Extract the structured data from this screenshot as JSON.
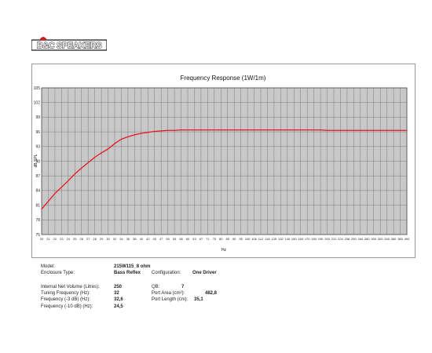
{
  "logo": {
    "text": "B&C SPEAKERS"
  },
  "chart_data": {
    "type": "line",
    "title": "Frequency Response (1W/1m)",
    "xlabel": "Hz",
    "ylabel": "dB SPL",
    "ylim": [
      75,
      105
    ],
    "yticks": [
      75,
      78,
      81,
      84,
      87,
      90,
      93,
      96,
      99,
      102,
      105
    ],
    "xticks": [
      20,
      21,
      22,
      23,
      24,
      25,
      26,
      27,
      28,
      29,
      30,
      32,
      34,
      36,
      38,
      40,
      42,
      45,
      47,
      50,
      53,
      56,
      60,
      63,
      67,
      71,
      75,
      80,
      85,
      90,
      95,
      100,
      106,
      112,
      118,
      125,
      132,
      140,
      150,
      160,
      170,
      180,
      190,
      200,
      212,
      224,
      236,
      250,
      264,
      280,
      300,
      320,
      340,
      360,
      380,
      400
    ],
    "grid": true,
    "line_color": "#e8141e",
    "series": [
      {
        "x": [
          20,
          21,
          22,
          23,
          24,
          25,
          26,
          27,
          28,
          29,
          30,
          32,
          34,
          36,
          38,
          40,
          42,
          45,
          47,
          50,
          53,
          56,
          60,
          63,
          67,
          71,
          75,
          80,
          85,
          90,
          95,
          100,
          106,
          112,
          118,
          125,
          132,
          140,
          150,
          160,
          170,
          180,
          190,
          200,
          212,
          224,
          236,
          250,
          264,
          280,
          300,
          320,
          340,
          360,
          380,
          400
        ],
        "values": [
          80.2,
          81.8,
          83.4,
          84.7,
          86.0,
          87.4,
          88.6,
          89.7,
          90.8,
          91.7,
          92.5,
          93.6,
          94.5,
          95.0,
          95.4,
          95.7,
          95.9,
          96.1,
          96.2,
          96.3,
          96.3,
          96.4,
          96.4,
          96.4,
          96.4,
          96.4,
          96.4,
          96.4,
          96.4,
          96.4,
          96.4,
          96.4,
          96.4,
          96.4,
          96.4,
          96.4,
          96.4,
          96.4,
          96.4,
          96.4,
          96.4,
          96.4,
          96.4,
          96.3,
          96.3,
          96.3,
          96.3,
          96.3,
          96.3,
          96.3,
          96.3,
          96.3,
          96.3,
          96.3,
          96.3,
          96.3
        ]
      }
    ]
  },
  "specs": {
    "model_label": "Model:",
    "model_value": "215W115_8 ohm",
    "enclosure_label": "Enclosure Type:",
    "enclosure_value": "Bass Reflex",
    "configuration_label": "Configuration:",
    "configuration_value": "One Driver",
    "volume_label": "Internal Net Volume (Litres):",
    "volume_value": "250",
    "qb_label": "QB:",
    "qb_value": "7",
    "tuning_label": "Tuning Frequency (Hz):",
    "tuning_value": "32",
    "port_area_label": "Port Area (cm²):",
    "port_area_value": "482,8",
    "f3_label": "Frequency (-3 dB) (Hz):",
    "f3_value": "32,6",
    "port_length_label": "Port Length (cm):",
    "port_length_value": "35,1",
    "f10_label": "Frequency (-10 dB) (Hz):",
    "f10_value": "24,5"
  }
}
